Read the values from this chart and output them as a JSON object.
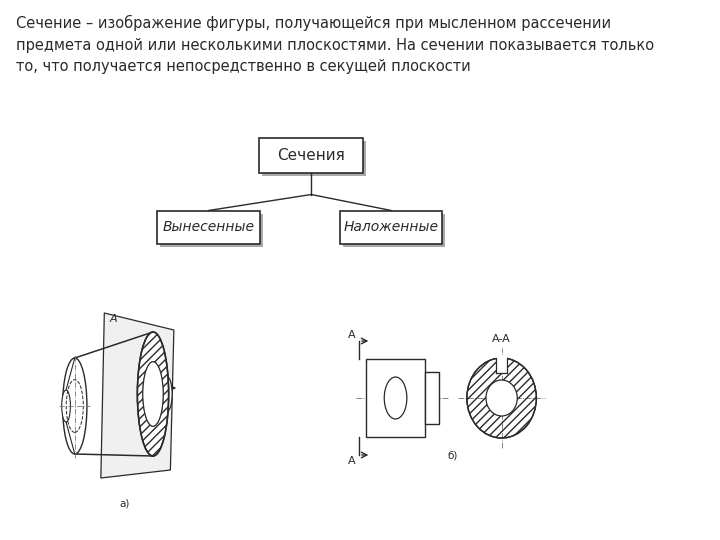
{
  "bg_color": "#ffffff",
  "text_intro": "Сечение – изображение фигуры, получающейся при мысленном рассечении\nпредмета одной или несколькими плоскостями. На сечении показывается только\nто, что получается непосредственно в секущей плоскости",
  "box_main_label": "Сечения",
  "box_left_label": "Вынесенные",
  "box_right_label": "Наложенные",
  "label_a": "а)",
  "label_b": "б)",
  "line_color": "#2a2a2a",
  "box_shadow_color": "#aaaaaa",
  "font_size_text": 10.5,
  "font_size_box_main": 11,
  "font_size_box_child": 10,
  "font_size_small": 8,
  "font_size_label": 7.5
}
